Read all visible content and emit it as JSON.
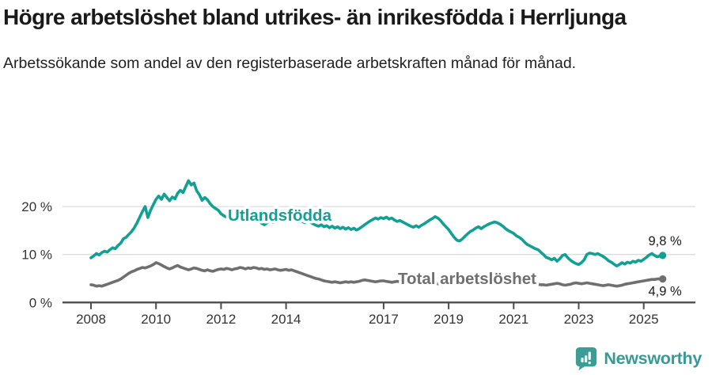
{
  "header": {
    "title": "Högre arbetslöshet bland utrikes- än inrikesfödda i Herrljunga",
    "subtitle": "Arbetssökande som andel av den registerbaserade arbetskraften månad för månad."
  },
  "chart_data": {
    "type": "line",
    "x_start_year": 2008,
    "x_step_months": 1,
    "x_ticks": [
      2008,
      2010,
      2012,
      2014,
      2017,
      2019,
      2021,
      2023,
      2025
    ],
    "y_ticks": [
      {
        "v": 0,
        "label": "0 %"
      },
      {
        "v": 10,
        "label": "10 %"
      },
      {
        "v": 20,
        "label": "20 %"
      }
    ],
    "ylim": [
      0,
      27
    ],
    "grid": "horizontal",
    "legend_position": "inline-labels",
    "colors": {
      "axis": "#4c4c4c",
      "grid": "#dcdcdc",
      "tick_text": "#333333",
      "value_text": "#1a1a1a"
    },
    "series": [
      {
        "name": "Utlandsfödda",
        "color": "#12a094",
        "end_label": "9,8 %",
        "label_pos": {
          "t": 2012.21,
          "v": 17.05
        },
        "values": [
          9.3,
          9.7,
          10.2,
          9.9,
          10.4,
          10.7,
          10.5,
          11.0,
          11.4,
          11.2,
          11.9,
          12.4,
          13.3,
          13.6,
          14.2,
          14.8,
          15.6,
          16.6,
          17.8,
          19.0,
          20.0,
          17.7,
          19.2,
          20.4,
          21.5,
          22.2,
          21.5,
          22.6,
          21.9,
          21.2,
          22.0,
          21.6,
          22.8,
          23.4,
          22.9,
          24.2,
          25.4,
          24.5,
          24.9,
          23.3,
          22.5,
          21.3,
          21.9,
          21.4,
          20.6,
          20.0,
          19.6,
          19.2,
          18.5,
          18.1,
          17.8,
          18.1,
          17.6,
          17.9,
          17.4,
          17.7,
          17.3,
          17.6,
          17.2,
          17.5,
          17.1,
          17.4,
          16.9,
          16.5,
          16.2,
          16.6,
          17.0,
          16.7,
          17.1,
          16.8,
          17.2,
          16.9,
          17.3,
          17.0,
          17.4,
          17.1,
          16.8,
          17.2,
          16.9,
          16.6,
          17.0,
          16.7,
          16.4,
          16.1,
          15.9,
          16.2,
          15.8,
          16.0,
          15.6,
          15.9,
          15.5,
          15.8,
          15.4,
          15.7,
          15.3,
          15.6,
          15.2,
          15.5,
          15.1,
          15.4,
          15.8,
          16.2,
          16.6,
          17.0,
          17.3,
          17.6,
          17.4,
          17.7,
          17.5,
          17.8,
          17.4,
          17.6,
          17.2,
          16.9,
          17.1,
          16.8,
          16.5,
          16.2,
          15.9,
          15.7,
          16.0,
          15.7,
          16.1,
          16.4,
          16.8,
          17.2,
          17.5,
          17.9,
          17.6,
          17.1,
          16.4,
          15.8,
          15.2,
          14.4,
          13.6,
          13.0,
          12.8,
          13.2,
          13.8,
          14.3,
          14.8,
          15.1,
          15.5,
          15.8,
          15.4,
          15.8,
          16.1,
          16.4,
          16.6,
          16.8,
          16.6,
          16.3,
          15.9,
          15.4,
          15.0,
          14.7,
          14.4,
          13.9,
          13.6,
          13.2,
          12.6,
          12.1,
          11.8,
          11.5,
          11.2,
          11.0,
          10.5,
          10.0,
          9.4,
          9.2,
          8.9,
          9.2,
          8.6,
          9.1,
          9.8,
          10.0,
          9.3,
          8.8,
          8.4,
          8.1,
          7.9,
          8.3,
          8.9,
          10.0,
          10.3,
          10.2,
          10.0,
          10.2,
          9.9,
          9.6,
          9.2,
          8.7,
          8.4,
          8.0,
          7.6,
          7.9,
          8.3,
          8.0,
          8.4,
          8.2,
          8.6,
          8.4,
          8.8,
          8.6,
          9.0,
          9.4,
          9.9,
          10.2,
          9.8,
          9.5,
          9.7,
          9.8
        ]
      },
      {
        "name": "Total arbetslöshet",
        "color": "#6f6f6f",
        "end_label": "4,9 %",
        "label_pos": {
          "t": 2017.44,
          "v": 3.84
        },
        "values": [
          3.7,
          3.6,
          3.4,
          3.5,
          3.4,
          3.6,
          3.8,
          4.0,
          4.2,
          4.4,
          4.6,
          4.9,
          5.3,
          5.7,
          6.1,
          6.4,
          6.6,
          6.9,
          7.1,
          7.3,
          7.2,
          7.4,
          7.6,
          7.9,
          8.3,
          8.1,
          7.8,
          7.5,
          7.2,
          7.0,
          7.2,
          7.5,
          7.7,
          7.4,
          7.2,
          7.0,
          6.8,
          7.0,
          7.2,
          7.1,
          6.9,
          6.7,
          6.6,
          6.8,
          6.6,
          6.5,
          6.7,
          6.9,
          7.0,
          6.9,
          7.1,
          7.0,
          6.8,
          7.0,
          7.1,
          7.3,
          7.2,
          7.0,
          7.2,
          7.1,
          7.3,
          7.2,
          7.0,
          7.1,
          6.9,
          7.0,
          6.8,
          6.9,
          7.0,
          6.8,
          6.7,
          6.8,
          6.9,
          6.7,
          6.8,
          6.6,
          6.4,
          6.2,
          6.0,
          5.8,
          5.6,
          5.4,
          5.2,
          5.0,
          4.9,
          4.7,
          4.5,
          4.4,
          4.3,
          4.2,
          4.3,
          4.2,
          4.1,
          4.2,
          4.3,
          4.2,
          4.3,
          4.2,
          4.3,
          4.4,
          4.6,
          4.7,
          4.6,
          4.5,
          4.4,
          4.3,
          4.4,
          4.5,
          4.5,
          4.4,
          4.3,
          4.2,
          4.3,
          4.4,
          4.3,
          4.2,
          4.1,
          4.2,
          4.3,
          4.2,
          4.1,
          4.2,
          4.1,
          4.0,
          4.1,
          4.2,
          4.1,
          4.0,
          3.9,
          4.0,
          4.1,
          4.0,
          4.1,
          4.0,
          3.9,
          4.0,
          4.1,
          4.2,
          4.3,
          4.2,
          4.3,
          4.4,
          4.3,
          4.4,
          4.5,
          4.7,
          5.0,
          5.4,
          5.6,
          5.7,
          5.6,
          5.4,
          5.2,
          5.0,
          4.9,
          4.8,
          4.7,
          4.6,
          4.5,
          4.4,
          4.3,
          4.2,
          4.1,
          4.0,
          3.9,
          3.8,
          3.7,
          3.7,
          3.6,
          3.7,
          3.8,
          3.9,
          4.0,
          3.9,
          3.7,
          3.6,
          3.7,
          3.8,
          4.0,
          4.1,
          4.0,
          3.9,
          4.0,
          4.1,
          4.0,
          3.9,
          3.8,
          3.7,
          3.6,
          3.5,
          3.6,
          3.7,
          3.6,
          3.5,
          3.4,
          3.5,
          3.6,
          3.8,
          3.9,
          4.0,
          4.1,
          4.2,
          4.3,
          4.4,
          4.5,
          4.6,
          4.7,
          4.8,
          4.8,
          4.9,
          4.9,
          4.9
        ]
      }
    ]
  },
  "footer": {
    "brand": "Newsworthy",
    "brand_color": "#379a94",
    "logo_icon": "newsworthy-speech-bubble-bar-chart-icon"
  }
}
